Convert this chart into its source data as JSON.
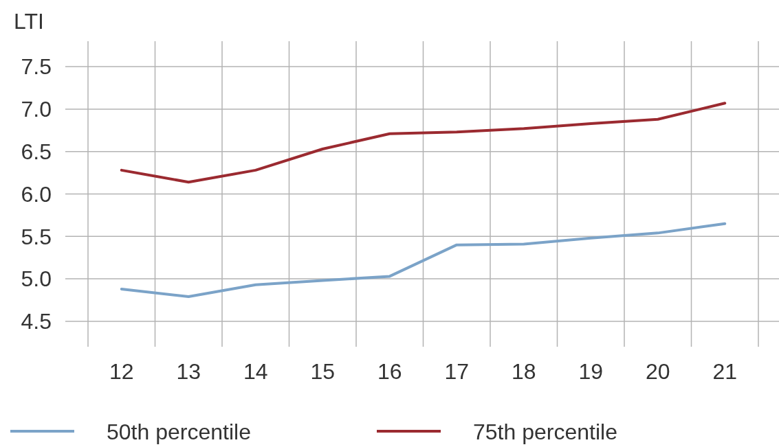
{
  "chart_data": {
    "type": "line",
    "ylabel": "LTI",
    "categories": [
      "12",
      "13",
      "14",
      "15",
      "16",
      "17",
      "18",
      "19",
      "20",
      "21"
    ],
    "series": [
      {
        "name": "50th percentile",
        "color": "#7ba3c8",
        "values": [
          4.88,
          4.79,
          4.93,
          4.98,
          5.03,
          5.4,
          5.41,
          5.48,
          5.54,
          5.65
        ]
      },
      {
        "name": "75th percentile",
        "color": "#9b2a30",
        "values": [
          6.28,
          6.14,
          6.28,
          6.53,
          6.71,
          6.73,
          6.77,
          6.83,
          6.88,
          7.07
        ]
      }
    ],
    "ylim": [
      4.2,
      7.8
    ],
    "yticks": [
      {
        "value": 4.5,
        "label": "4.5"
      },
      {
        "value": 5,
        "label": "5.0"
      },
      {
        "value": 5.5,
        "label": "5.5"
      },
      {
        "value": 6,
        "label": "6.0"
      },
      {
        "value": 6.5,
        "label": "6.5"
      },
      {
        "value": 7,
        "label": "7.0"
      },
      {
        "value": 7.5,
        "label": "7.5"
      }
    ],
    "grid": true,
    "legend": "bottom",
    "marker": "none",
    "line_style": "solid"
  }
}
